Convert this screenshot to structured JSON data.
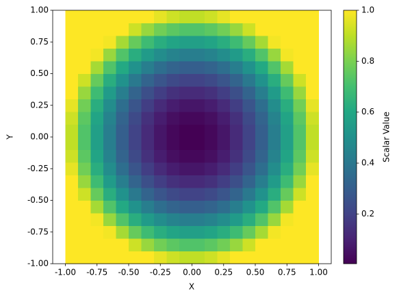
{
  "chart_data": {
    "type": "heatmap",
    "xlabel": "X",
    "ylabel": "Y",
    "colorbar_label": "Scalar Value",
    "colormap": "viridis",
    "x": [
      -0.95,
      -0.85,
      -0.75,
      -0.65,
      -0.55,
      -0.45,
      -0.35,
      -0.25,
      -0.15,
      -0.05,
      0.05,
      0.15,
      0.25,
      0.35,
      0.45,
      0.55,
      0.65,
      0.75,
      0.85,
      0.95
    ],
    "y": [
      -0.95,
      -0.85,
      -0.75,
      -0.65,
      -0.55,
      -0.45,
      -0.35,
      -0.25,
      -0.15,
      -0.05,
      0.05,
      0.15,
      0.25,
      0.35,
      0.45,
      0.55,
      0.65,
      0.75,
      0.85,
      0.95
    ],
    "z": [
      [
        1,
        1,
        1,
        1,
        1,
        1,
        1,
        0.965,
        0.925,
        0.905,
        0.905,
        0.925,
        0.965,
        1,
        1,
        1,
        1,
        1,
        1,
        1
      ],
      [
        1,
        1,
        1,
        1,
        1,
        0.925,
        0.845,
        0.785,
        0.745,
        0.725,
        0.725,
        0.745,
        0.785,
        0.845,
        0.925,
        1,
        1,
        1,
        1,
        1
      ],
      [
        1,
        1,
        1,
        0.985,
        0.865,
        0.765,
        0.685,
        0.625,
        0.585,
        0.565,
        0.565,
        0.585,
        0.625,
        0.685,
        0.765,
        0.865,
        0.985,
        1,
        1,
        1
      ],
      [
        1,
        1,
        0.985,
        0.845,
        0.725,
        0.625,
        0.545,
        0.485,
        0.445,
        0.425,
        0.425,
        0.445,
        0.485,
        0.545,
        0.625,
        0.725,
        0.845,
        0.985,
        1,
        1
      ],
      [
        1,
        1,
        0.865,
        0.725,
        0.605,
        0.505,
        0.425,
        0.365,
        0.325,
        0.305,
        0.305,
        0.325,
        0.365,
        0.425,
        0.505,
        0.605,
        0.725,
        0.865,
        1,
        1
      ],
      [
        1,
        0.925,
        0.765,
        0.625,
        0.505,
        0.405,
        0.325,
        0.265,
        0.225,
        0.205,
        0.205,
        0.225,
        0.265,
        0.325,
        0.405,
        0.505,
        0.625,
        0.765,
        0.925,
        1
      ],
      [
        1,
        0.845,
        0.685,
        0.545,
        0.425,
        0.325,
        0.245,
        0.185,
        0.145,
        0.125,
        0.125,
        0.145,
        0.185,
        0.245,
        0.325,
        0.425,
        0.545,
        0.685,
        0.845,
        1
      ],
      [
        0.965,
        0.785,
        0.625,
        0.485,
        0.365,
        0.265,
        0.185,
        0.125,
        0.085,
        0.065,
        0.065,
        0.085,
        0.125,
        0.185,
        0.265,
        0.365,
        0.485,
        0.625,
        0.785,
        0.965
      ],
      [
        0.925,
        0.745,
        0.585,
        0.445,
        0.325,
        0.225,
        0.145,
        0.085,
        0.045,
        0.025,
        0.025,
        0.045,
        0.085,
        0.145,
        0.225,
        0.325,
        0.445,
        0.585,
        0.745,
        0.925
      ],
      [
        0.905,
        0.725,
        0.565,
        0.425,
        0.305,
        0.205,
        0.125,
        0.065,
        0.025,
        0.005,
        0.005,
        0.025,
        0.065,
        0.125,
        0.205,
        0.305,
        0.425,
        0.565,
        0.725,
        0.905
      ],
      [
        0.905,
        0.725,
        0.565,
        0.425,
        0.305,
        0.205,
        0.125,
        0.065,
        0.025,
        0.005,
        0.005,
        0.025,
        0.065,
        0.125,
        0.205,
        0.305,
        0.425,
        0.565,
        0.725,
        0.905
      ],
      [
        0.925,
        0.745,
        0.585,
        0.445,
        0.325,
        0.225,
        0.145,
        0.085,
        0.045,
        0.025,
        0.025,
        0.045,
        0.085,
        0.145,
        0.225,
        0.325,
        0.445,
        0.585,
        0.745,
        0.925
      ],
      [
        0.965,
        0.785,
        0.625,
        0.485,
        0.365,
        0.265,
        0.185,
        0.125,
        0.085,
        0.065,
        0.065,
        0.085,
        0.125,
        0.185,
        0.265,
        0.365,
        0.485,
        0.625,
        0.785,
        0.965
      ],
      [
        1,
        0.845,
        0.685,
        0.545,
        0.425,
        0.325,
        0.245,
        0.185,
        0.145,
        0.125,
        0.125,
        0.145,
        0.185,
        0.245,
        0.325,
        0.425,
        0.545,
        0.685,
        0.845,
        1
      ],
      [
        1,
        0.925,
        0.765,
        0.625,
        0.505,
        0.405,
        0.325,
        0.265,
        0.225,
        0.205,
        0.205,
        0.225,
        0.265,
        0.325,
        0.405,
        0.505,
        0.625,
        0.765,
        0.925,
        1
      ],
      [
        1,
        1,
        0.865,
        0.725,
        0.605,
        0.505,
        0.425,
        0.365,
        0.325,
        0.305,
        0.305,
        0.325,
        0.365,
        0.425,
        0.505,
        0.605,
        0.725,
        0.865,
        1,
        1
      ],
      [
        1,
        1,
        0.985,
        0.845,
        0.725,
        0.625,
        0.545,
        0.485,
        0.445,
        0.425,
        0.425,
        0.445,
        0.485,
        0.545,
        0.625,
        0.725,
        0.845,
        0.985,
        1,
        1
      ],
      [
        1,
        1,
        1,
        0.985,
        0.865,
        0.765,
        0.685,
        0.625,
        0.585,
        0.565,
        0.565,
        0.585,
        0.625,
        0.685,
        0.765,
        0.865,
        0.985,
        1,
        1,
        1
      ],
      [
        1,
        1,
        1,
        1,
        1,
        0.925,
        0.845,
        0.785,
        0.745,
        0.725,
        0.725,
        0.745,
        0.785,
        0.845,
        0.925,
        1,
        1,
        1,
        1,
        1
      ],
      [
        1,
        1,
        1,
        1,
        1,
        1,
        1,
        0.965,
        0.925,
        0.905,
        0.905,
        0.925,
        0.965,
        1,
        1,
        1,
        1,
        1,
        1,
        1
      ]
    ],
    "xlim": [
      -1.1,
      1.1
    ],
    "ylim": [
      -1,
      1
    ],
    "clim": [
      0.005,
      1
    ],
    "xticks": [
      {
        "value": -1,
        "label": "-1.00"
      },
      {
        "value": -0.75,
        "label": "-0.75"
      },
      {
        "value": -0.5,
        "label": "-0.50"
      },
      {
        "value": -0.25,
        "label": "-0.25"
      },
      {
        "value": 0,
        "label": "0.00"
      },
      {
        "value": 0.25,
        "label": "0.25"
      },
      {
        "value": 0.5,
        "label": "0.50"
      },
      {
        "value": 0.75,
        "label": "0.75"
      },
      {
        "value": 1,
        "label": "1.00"
      }
    ],
    "yticks": [
      {
        "value": -1,
        "label": "-1.00"
      },
      {
        "value": -0.75,
        "label": "-0.75"
      },
      {
        "value": -0.5,
        "label": "-0.50"
      },
      {
        "value": -0.25,
        "label": "-0.25"
      },
      {
        "value": 0,
        "label": "0.00"
      },
      {
        "value": 0.25,
        "label": "0.25"
      },
      {
        "value": 0.5,
        "label": "0.50"
      },
      {
        "value": 0.75,
        "label": "0.75"
      },
      {
        "value": 1,
        "label": "1.00"
      }
    ],
    "cticks": [
      0.2,
      0.4,
      0.6,
      0.8,
      {
        "value": 1,
        "label": "1.0"
      }
    ]
  }
}
